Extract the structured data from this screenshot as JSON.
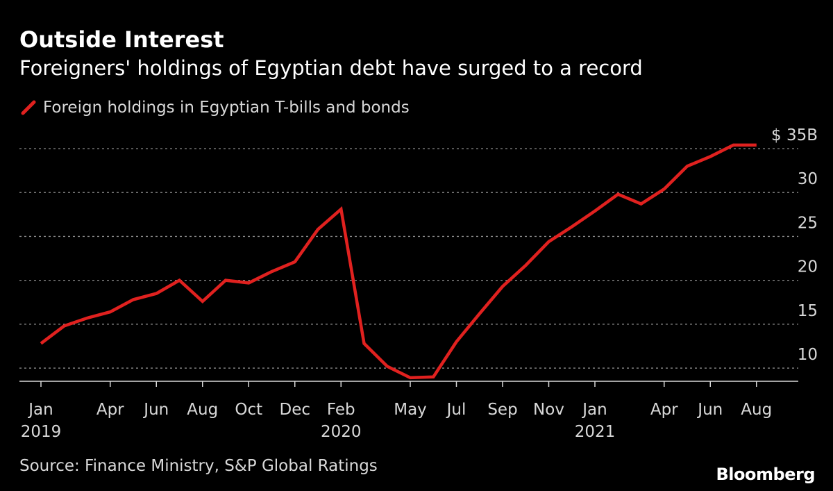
{
  "chart_data": {
    "type": "line",
    "title": "Outside Interest",
    "subtitle": "Foreigners' holdings of Egyptian debt have surged to a record",
    "source": "Source: Finance Ministry, S&P Global Ratings",
    "brand": "Bloomberg",
    "ylim": [
      8.5,
      35
    ],
    "yticks": [
      10,
      15,
      20,
      25,
      30,
      35
    ],
    "ytick_labels": [
      "10",
      "15",
      "20",
      "25",
      "30",
      "$ 35B"
    ],
    "grid": true,
    "legend_position": "top-left",
    "x_tick_labels": [
      {
        "month": "2019-01",
        "label": "Jan",
        "year": "2019"
      },
      {
        "month": "2019-04",
        "label": "Apr"
      },
      {
        "month": "2019-06",
        "label": "Jun"
      },
      {
        "month": "2019-08",
        "label": "Aug"
      },
      {
        "month": "2019-10",
        "label": "Oct"
      },
      {
        "month": "2019-12",
        "label": "Dec"
      },
      {
        "month": "2020-02",
        "label": "Feb",
        "year": "2020"
      },
      {
        "month": "2020-05",
        "label": "May"
      },
      {
        "month": "2020-07",
        "label": "Jul"
      },
      {
        "month": "2020-09",
        "label": "Sep"
      },
      {
        "month": "2020-11",
        "label": "Nov"
      },
      {
        "month": "2021-01",
        "label": "Jan",
        "year": "2021"
      },
      {
        "month": "2021-04",
        "label": "Apr"
      },
      {
        "month": "2021-06",
        "label": "Jun"
      },
      {
        "month": "2021-08",
        "label": "Aug"
      }
    ],
    "series": [
      {
        "name": "Foreign holdings in Egyptian T-bills and bonds",
        "color": "#e0211f",
        "x": [
          "2019-01",
          "2019-02",
          "2019-03",
          "2019-04",
          "2019-05",
          "2019-06",
          "2019-07",
          "2019-08",
          "2019-09",
          "2019-10",
          "2019-11",
          "2019-12",
          "2020-01",
          "2020-02",
          "2020-03",
          "2020-04",
          "2020-05",
          "2020-06",
          "2020-07",
          "2020-08",
          "2020-09",
          "2020-10",
          "2020-11",
          "2020-12",
          "2021-01",
          "2021-02",
          "2021-03",
          "2021-04",
          "2021-05",
          "2021-06",
          "2021-07",
          "2021-08"
        ],
        "values": [
          12.8,
          14.8,
          15.7,
          16.4,
          17.8,
          18.5,
          20.0,
          17.6,
          20.0,
          19.7,
          21.0,
          22.1,
          25.8,
          28.1,
          12.8,
          10.2,
          8.9,
          9.0,
          13.0,
          16.2,
          19.3,
          21.7,
          24.4,
          26.1,
          27.9,
          29.8,
          28.7,
          30.4,
          33.0,
          34.1,
          35.4,
          35.4
        ]
      }
    ]
  }
}
